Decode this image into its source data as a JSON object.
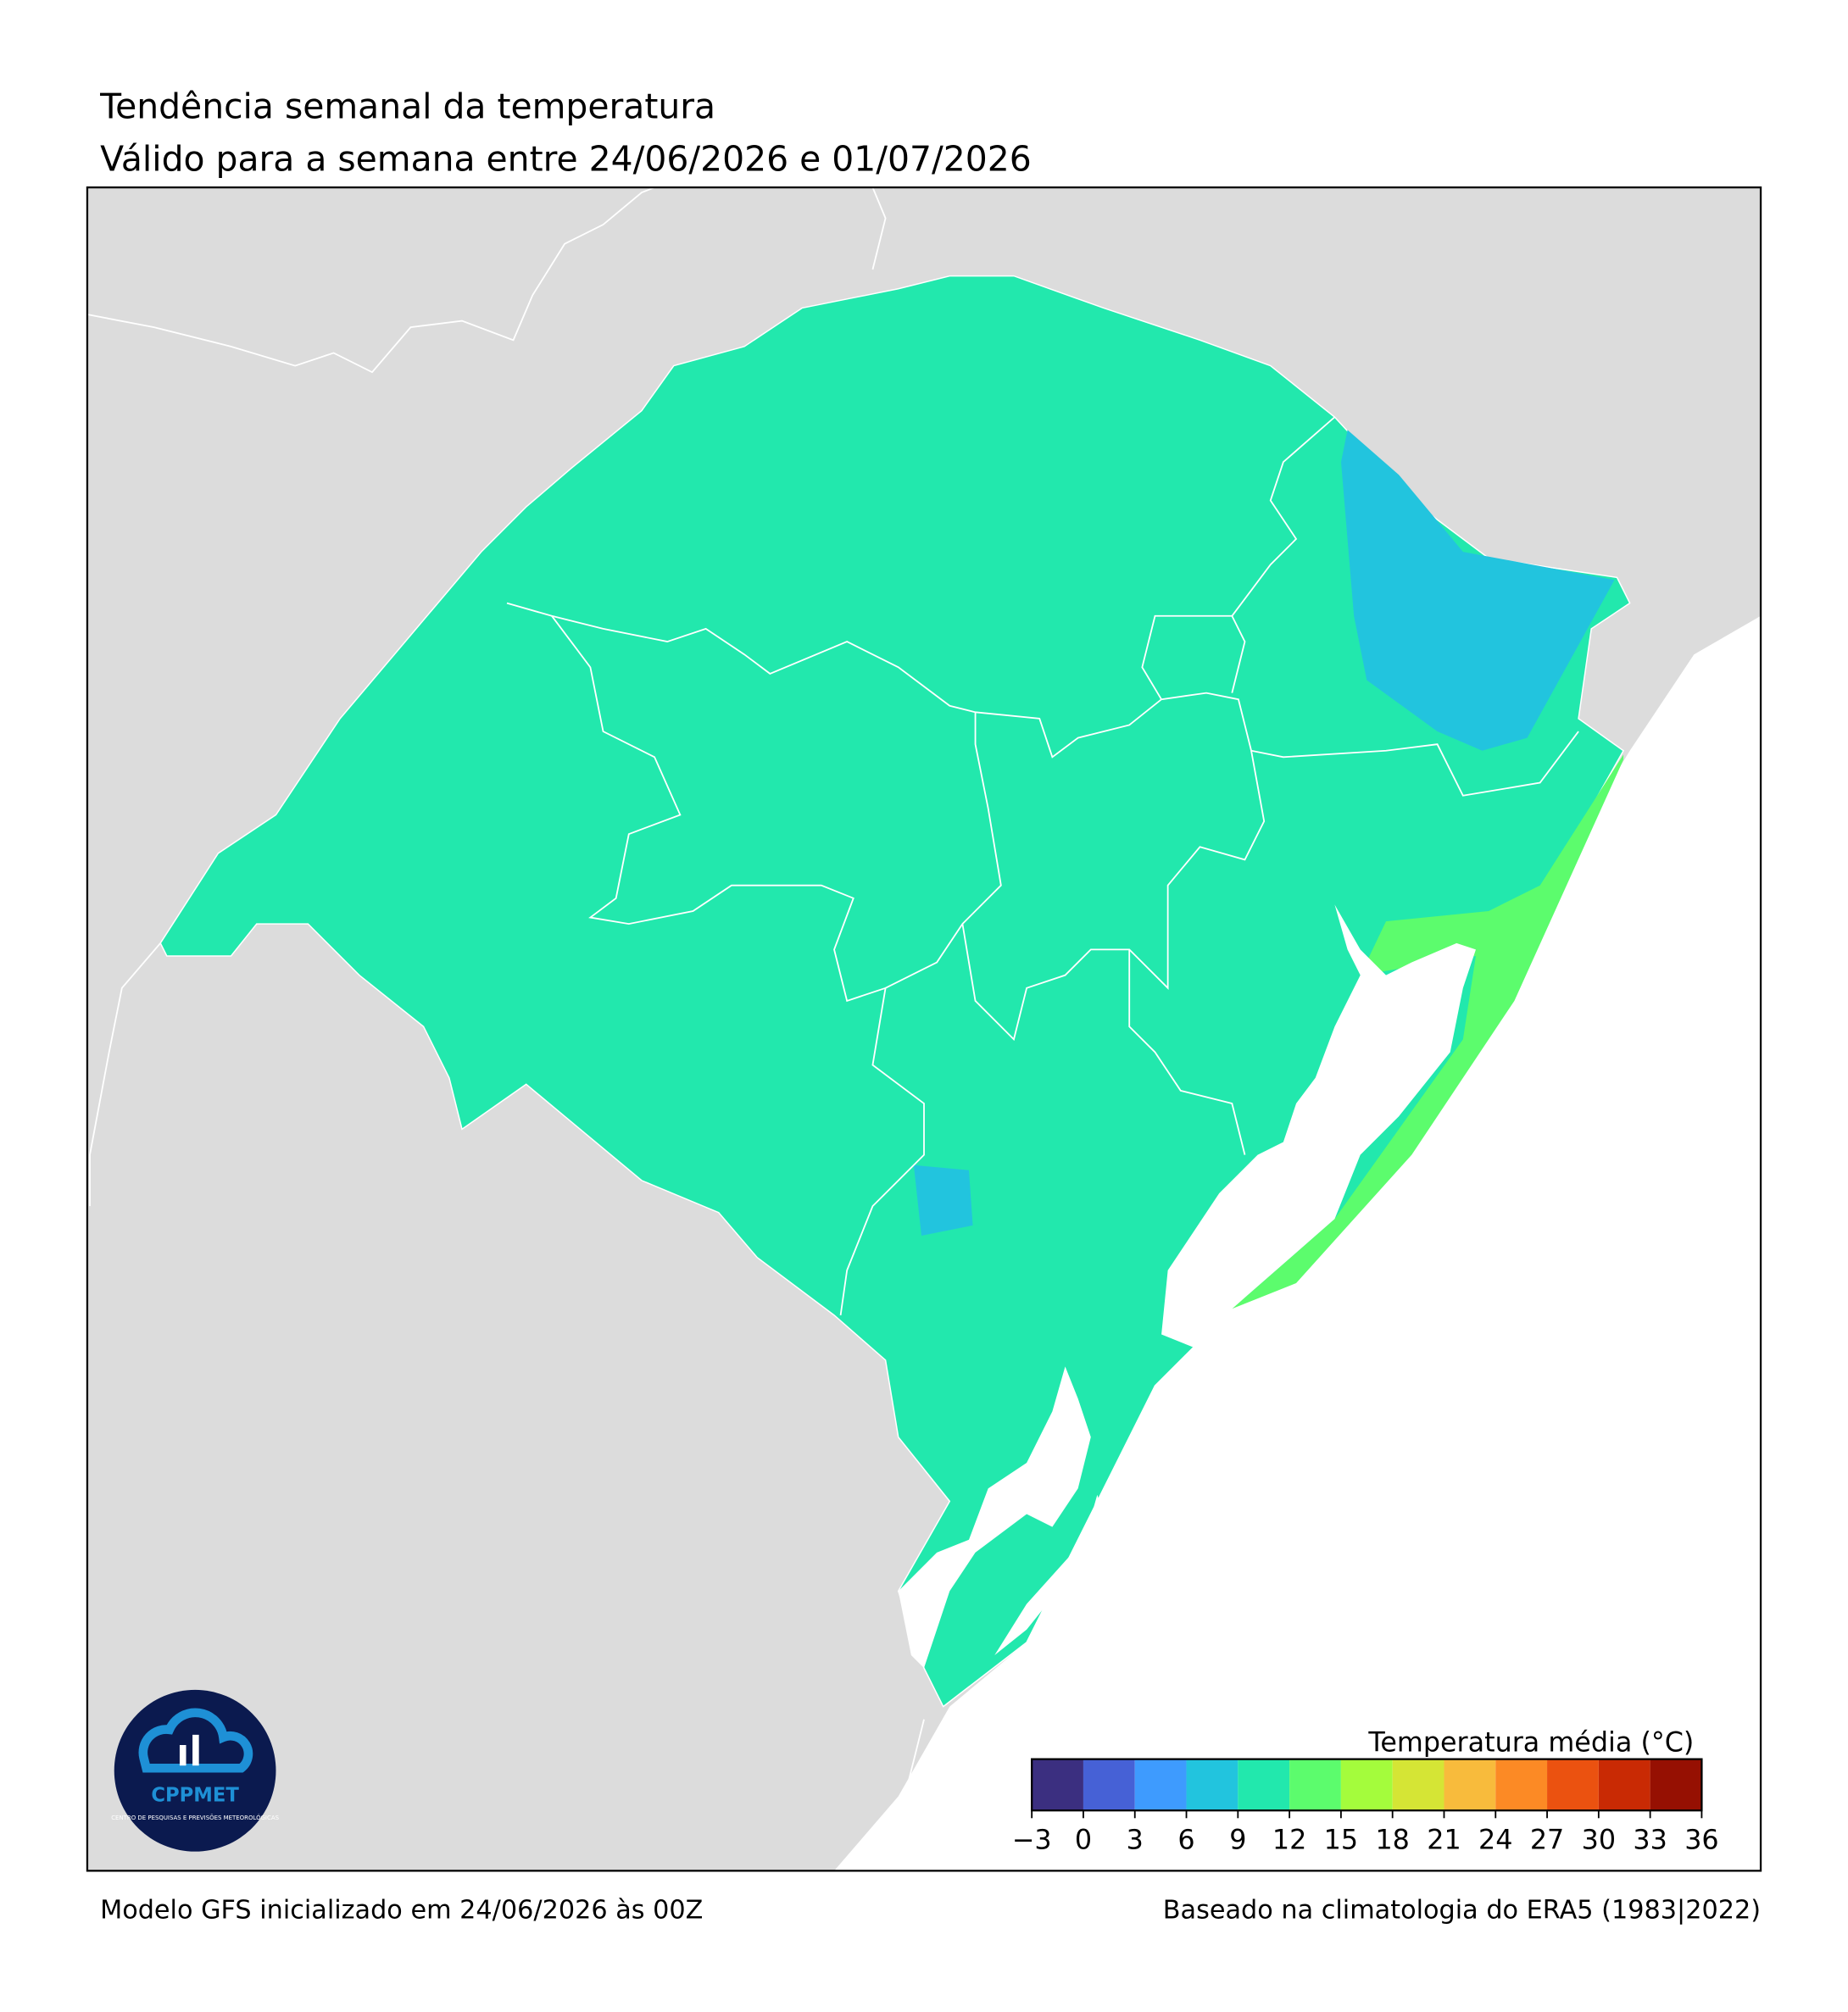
{
  "header": {
    "title": "Tendência semanal da temperatura",
    "subtitle": "Válido para a semana entre 24/06/2026 e 01/07/2026"
  },
  "footer": {
    "left": "Modelo GFS inicializado em 24/06/2026 às 00Z",
    "right": "Baseado na climatologia do ERA5 (1983|2022)"
  },
  "colorbar": {
    "title": "Temperatura média (°C)",
    "bounds": [
      -3,
      0,
      3,
      6,
      9,
      12,
      15,
      18,
      21,
      24,
      27,
      30,
      33,
      36
    ],
    "colors": [
      "#3b2f80",
      "#4661d6",
      "#3e9bfe",
      "#22c4de",
      "#22e8ad",
      "#5cfc6d",
      "#a4fc3c",
      "#d5e535",
      "#f8bb3c",
      "#fc8a25",
      "#eb5210",
      "#c92a04",
      "#961002"
    ],
    "ticks": [
      {
        "value": -3,
        "label": "−3"
      },
      0,
      3,
      6,
      9,
      12,
      15,
      18,
      21,
      24,
      27,
      30,
      33,
      36
    ]
  },
  "logo": {
    "name": "CPPMET",
    "tagline": "CENTRO DE PESQUISAS E PREVISÕES METEOROLÓGICAS"
  }
}
